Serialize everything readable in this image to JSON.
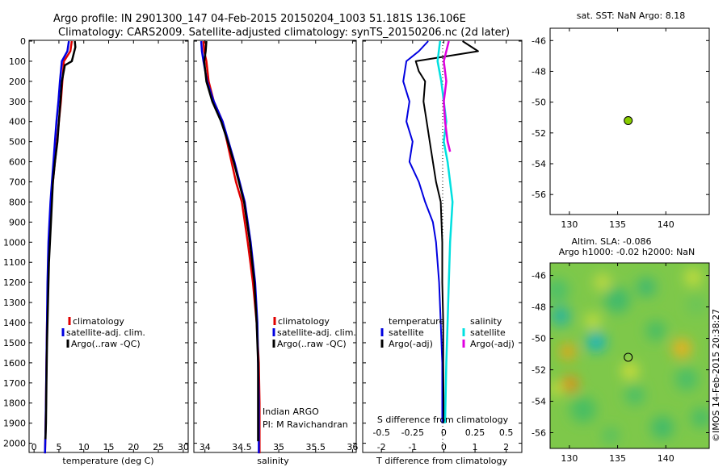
{
  "title_line1": "Argo profile: IN 2901300_147 04-Feb-2015 20150204_1003 51.181S 136.106E",
  "title_line2": "Climatology: CARS2009. Satellite-adjusted climatology: synTS_20150206.nc (2d later)",
  "colors": {
    "climatology": "#e00000",
    "satellite": "#0000e0",
    "argo": "#000000",
    "sat_salinity": "#00e0e0",
    "argo_salinity": "#e000e0",
    "marker": "#88cc00"
  },
  "depth_ticks": [
    "0",
    "100",
    "200",
    "300",
    "400",
    "500",
    "600",
    "700",
    "800",
    "900",
    "1000",
    "1100",
    "1200",
    "1300",
    "1400",
    "1500",
    "1600",
    "1700",
    "1800",
    "1900",
    "2000"
  ],
  "panels": {
    "temperature": {
      "xlabel": "temperature (deg C)",
      "xticks": [
        "0",
        "5",
        "10",
        "15",
        "20",
        "25",
        "30"
      ],
      "legend": [
        "climatology",
        "satellite-adj. clim.",
        "Argo(..raw -QC)"
      ]
    },
    "salinity": {
      "xlabel": "salinity",
      "xticks": [
        "34",
        "34.5",
        "35",
        "35.5",
        "36"
      ],
      "legend": [
        "climatology",
        "satellite-adj. clim.",
        "Argo(..raw -QC)"
      ],
      "note1": "Indian ARGO",
      "note2": "PI: M Ravichandran"
    },
    "difference": {
      "xlabel": "T difference from climatology",
      "s_label": "S difference from climatology",
      "t_ticks": [
        "-2",
        "-1",
        "0",
        "1",
        "2"
      ],
      "s_ticks": [
        "-0.5",
        "-0.25",
        "0",
        "0.25",
        "0.5"
      ],
      "legend_t_head": "temperature",
      "legend_s_head": "salinity",
      "legend_t": [
        "satellite",
        "Argo(-adj)"
      ],
      "legend_s": [
        "satellite",
        "Argo(-adj)"
      ]
    }
  },
  "sst_map": {
    "title": "sat. SST: NaN Argo: 8.18",
    "xticks": [
      "130",
      "135",
      "140"
    ],
    "yticks": [
      "-46",
      "-48",
      "-50",
      "-52",
      "-54",
      "-56"
    ]
  },
  "sla_map": {
    "title1": "Altim. SLA: -0.086",
    "title2": "Argo h1000: -0.02 h2000: NaN",
    "xticks": [
      "130",
      "135",
      "140"
    ],
    "yticks": [
      "-46",
      "-48",
      "-50",
      "-52",
      "-54",
      "-56"
    ]
  },
  "credit": "©IMOS 14-Feb-2015 20:38:27",
  "chart_data": [
    {
      "type": "line",
      "title": "",
      "xlabel": "temperature (deg C)",
      "ylabel": "",
      "xlim": [
        -1,
        31
      ],
      "ylim": [
        2050,
        0
      ],
      "series": [
        {
          "name": "climatology",
          "x": [
            7.6,
            7.3,
            6.0,
            5.7,
            5.4,
            5.0,
            4.6,
            4.2,
            3.8,
            3.5,
            3.2,
            3.0,
            2.8,
            2.6,
            2.5,
            2.4,
            2.3,
            2.2
          ],
          "y": [
            0,
            50,
            100,
            200,
            300,
            400,
            500,
            600,
            700,
            800,
            900,
            1000,
            1200,
            1400,
            1600,
            1800,
            1950,
            2050
          ]
        },
        {
          "name": "satellite-adj. clim.",
          "x": [
            7.0,
            6.7,
            5.6,
            5.2,
            4.9,
            4.5,
            4.2,
            3.9,
            3.6,
            3.3,
            3.1,
            2.9,
            2.7,
            2.6,
            2.5,
            2.4,
            2.3,
            2.2
          ],
          "y": [
            0,
            50,
            100,
            200,
            300,
            400,
            500,
            600,
            700,
            800,
            900,
            1000,
            1200,
            1400,
            1600,
            1800,
            1950,
            2050
          ]
        },
        {
          "name": "Argo(..raw -QC)",
          "x": [
            8.2,
            8.3,
            8.0,
            7.6,
            6.2,
            5.6,
            5.3,
            5.0,
            4.7,
            4.2,
            3.8,
            3.4,
            3.0,
            2.8,
            2.6,
            2.5,
            2.4,
            2.3
          ],
          "y": [
            0,
            30,
            60,
            100,
            120,
            200,
            300,
            400,
            500,
            600,
            700,
            900,
            1100,
            1300,
            1500,
            1700,
            1900,
            1980
          ]
        }
      ]
    },
    {
      "type": "line",
      "title": "",
      "xlabel": "salinity",
      "ylabel": "",
      "xlim": [
        33.85,
        36.05
      ],
      "ylim": [
        2050,
        0
      ],
      "series": [
        {
          "name": "climatology",
          "x": [
            33.98,
            33.99,
            34.02,
            34.05,
            34.12,
            34.24,
            34.3,
            34.36,
            34.42,
            34.5,
            34.58,
            34.65,
            34.7,
            34.73,
            34.74,
            34.74
          ],
          "y": [
            0,
            50,
            100,
            200,
            300,
            400,
            500,
            600,
            700,
            800,
            1000,
            1200,
            1400,
            1600,
            1800,
            2050
          ]
        },
        {
          "name": "satellite-adj. clim.",
          "x": [
            33.95,
            33.96,
            33.98,
            34.03,
            34.12,
            34.24,
            34.32,
            34.4,
            34.47,
            34.54,
            34.62,
            34.68,
            34.71,
            34.72,
            34.73,
            34.73
          ],
          "y": [
            0,
            50,
            100,
            200,
            300,
            400,
            500,
            600,
            700,
            800,
            1000,
            1200,
            1400,
            1600,
            1800,
            2050
          ]
        },
        {
          "name": "Argo(..raw -QC)",
          "x": [
            34.02,
            34.01,
            33.99,
            34.02,
            34.1,
            34.22,
            34.31,
            34.39,
            34.46,
            34.53,
            34.61,
            34.67,
            34.7,
            34.72,
            34.72
          ],
          "y": [
            0,
            50,
            100,
            200,
            300,
            400,
            500,
            600,
            700,
            800,
            1000,
            1200,
            1400,
            1600,
            1990
          ]
        }
      ]
    },
    {
      "type": "line",
      "title": "",
      "xlabel": "T difference from climatology",
      "ylabel": "",
      "xlim": [
        -2.6,
        2.5
      ],
      "ylim": [
        2050,
        0
      ],
      "series": [
        {
          "name": "temperature satellite",
          "x": [
            -0.5,
            -0.8,
            -1.2,
            -1.3,
            -1.1,
            -1.2,
            -1.0,
            -1.1,
            -0.8,
            -0.6,
            -0.35,
            -0.25,
            -0.15,
            -0.1,
            -0.05,
            -0.05,
            -0.05
          ],
          "y": [
            0,
            50,
            100,
            200,
            300,
            400,
            500,
            600,
            700,
            800,
            900,
            1000,
            1200,
            1400,
            1600,
            1800,
            1900
          ]
        },
        {
          "name": "temperature Argo(-adj)",
          "x": [
            0.6,
            1.1,
            -0.9,
            -0.8,
            -0.6,
            -0.65,
            -0.55,
            -0.45,
            -0.35,
            -0.25,
            -0.1,
            -0.05,
            -0.05,
            -0.02,
            -0.02,
            0.0
          ],
          "y": [
            0,
            50,
            100,
            150,
            200,
            300,
            400,
            500,
            600,
            700,
            800,
            1000,
            1200,
            1400,
            1600,
            1900
          ]
        }
      ]
    },
    {
      "type": "line",
      "title": "",
      "xlabel": "S difference from climatology",
      "ylabel": "",
      "xlim": [
        -0.65,
        0.625
      ],
      "ylim": [
        2050,
        0
      ],
      "series": [
        {
          "name": "salinity satellite",
          "x": [
            -0.03,
            -0.05,
            -0.02,
            0.0,
            0.02,
            0.0,
            0.03,
            0.05,
            0.07,
            0.06,
            0.05,
            0.04,
            0.03,
            0.02,
            0.01
          ],
          "y": [
            0,
            100,
            200,
            300,
            400,
            500,
            600,
            700,
            800,
            900,
            1000,
            1200,
            1400,
            1600,
            1900
          ]
        },
        {
          "name": "salinity Argo(-adj)",
          "x": [
            0.04,
            0.0,
            0.02,
            0.0,
            0.01,
            0.03,
            0.05
          ],
          "y": [
            0,
            100,
            200,
            300,
            400,
            500,
            550
          ]
        }
      ]
    },
    {
      "type": "scatter",
      "title": "sat. SST: NaN Argo: 8.18",
      "xlabel": "",
      "ylabel": "",
      "xlim": [
        128,
        144.5
      ],
      "ylim": [
        -57.3,
        -45.2
      ],
      "series": [
        {
          "name": "",
          "x": [
            136.1
          ],
          "y": [
            -51.2
          ]
        }
      ]
    },
    {
      "type": "heatmap",
      "title": "Altim. SLA: -0.086",
      "xlabel": "",
      "ylabel": "",
      "xlim": [
        128,
        144.5
      ],
      "ylim": [
        -57,
        -45.2
      ],
      "series": [
        {
          "name": "",
          "x": [
            136.1
          ],
          "y": [
            -51.2
          ]
        }
      ]
    }
  ]
}
